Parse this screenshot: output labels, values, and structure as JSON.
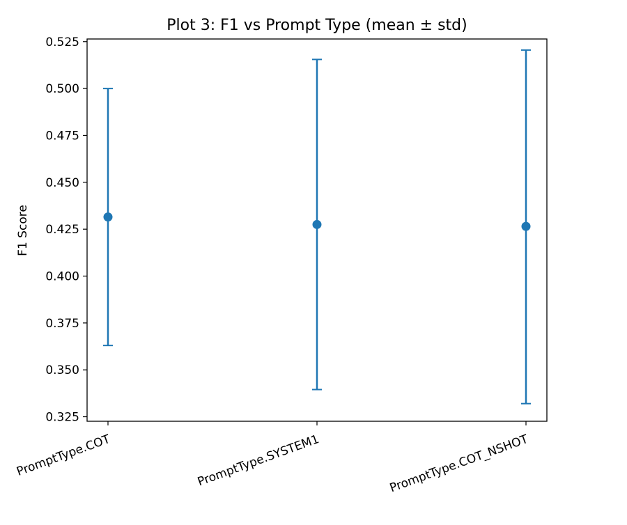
{
  "chart_data": {
    "type": "errorbar",
    "title": "Plot 3: F1 vs Prompt Type (mean ± std)",
    "xlabel": "",
    "ylabel": "F1 Score",
    "categories": [
      "PromptType.COT",
      "PromptType.SYSTEM1",
      "PromptType.COT_NSHOT"
    ],
    "series": [
      {
        "mean": [
          0.4315,
          0.4275,
          0.4265
        ],
        "lower": [
          0.363,
          0.3395,
          0.332
        ],
        "upper": [
          0.5,
          0.5155,
          0.5205
        ],
        "color": "#1f77b4"
      }
    ],
    "ylim": [
      0.3226,
      0.5264
    ],
    "yticks": [
      0.325,
      0.35,
      0.375,
      0.4,
      0.425,
      0.45,
      0.475,
      0.5,
      0.525
    ],
    "ytick_labels": [
      "0.325",
      "0.350",
      "0.375",
      "0.400",
      "0.425",
      "0.450",
      "0.475",
      "0.500",
      "0.525"
    ],
    "grid": false,
    "legend": "none",
    "xtick_rotation_deg": -20
  }
}
